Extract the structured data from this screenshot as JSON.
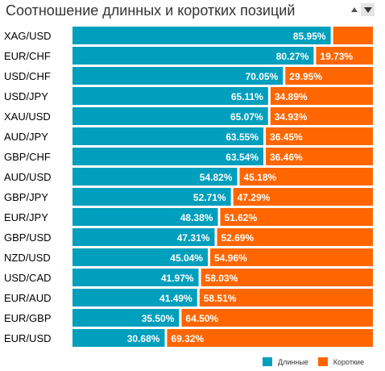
{
  "title": "Соотношение длинных и коротких позиций",
  "colors": {
    "long": "#009fbd",
    "short": "#ff6600",
    "label_text": "#ffffff",
    "category_text": "#000000"
  },
  "sort_controls": {
    "up_icon": "triangle-up-icon",
    "down_icon": "triangle-down-icon"
  },
  "legend": {
    "long_label": "Длинные",
    "short_label": "Короткие"
  },
  "chart_data": {
    "type": "bar",
    "orientation": "horizontal",
    "stacked": true,
    "percent": true,
    "categories": [
      "XAG/USD",
      "EUR/CHF",
      "USD/CHF",
      "USD/JPY",
      "XAU/USD",
      "AUD/JPY",
      "GBP/CHF",
      "AUD/USD",
      "GBP/JPY",
      "EUR/JPY",
      "GBP/USD",
      "NZD/USD",
      "USD/CAD",
      "EUR/AUD",
      "EUR/GBP",
      "EUR/USD"
    ],
    "series": [
      {
        "name": "Длинные",
        "values": [
          85.95,
          80.27,
          70.05,
          65.11,
          65.07,
          63.55,
          63.54,
          54.82,
          52.71,
          48.38,
          47.31,
          45.04,
          41.97,
          41.49,
          35.5,
          30.68
        ],
        "labels": [
          "85.95%",
          "80.27%",
          "70.05%",
          "65.11%",
          "65.07%",
          "63.55%",
          "63.54%",
          "54.82%",
          "52.71%",
          "48.38%",
          "47.31%",
          "45.04%",
          "41.97%",
          "41.49%",
          "35.50%",
          "30.68%"
        ]
      },
      {
        "name": "Короткие",
        "values": [
          14.05,
          19.73,
          29.95,
          34.89,
          34.93,
          36.45,
          36.46,
          45.18,
          47.29,
          51.62,
          52.69,
          54.96,
          58.03,
          58.51,
          64.5,
          69.32
        ],
        "labels": [
          "",
          "19.73%",
          "29.95%",
          "34.89%",
          "34.93%",
          "36.45%",
          "36.46%",
          "45.18%",
          "47.29%",
          "51.62%",
          "52.69%",
          "54.96%",
          "58.03%",
          "58.51%",
          "64.50%",
          "69.32%"
        ]
      }
    ],
    "xlim": [
      0,
      100
    ],
    "legend_position": "bottom-right",
    "grid": false
  }
}
